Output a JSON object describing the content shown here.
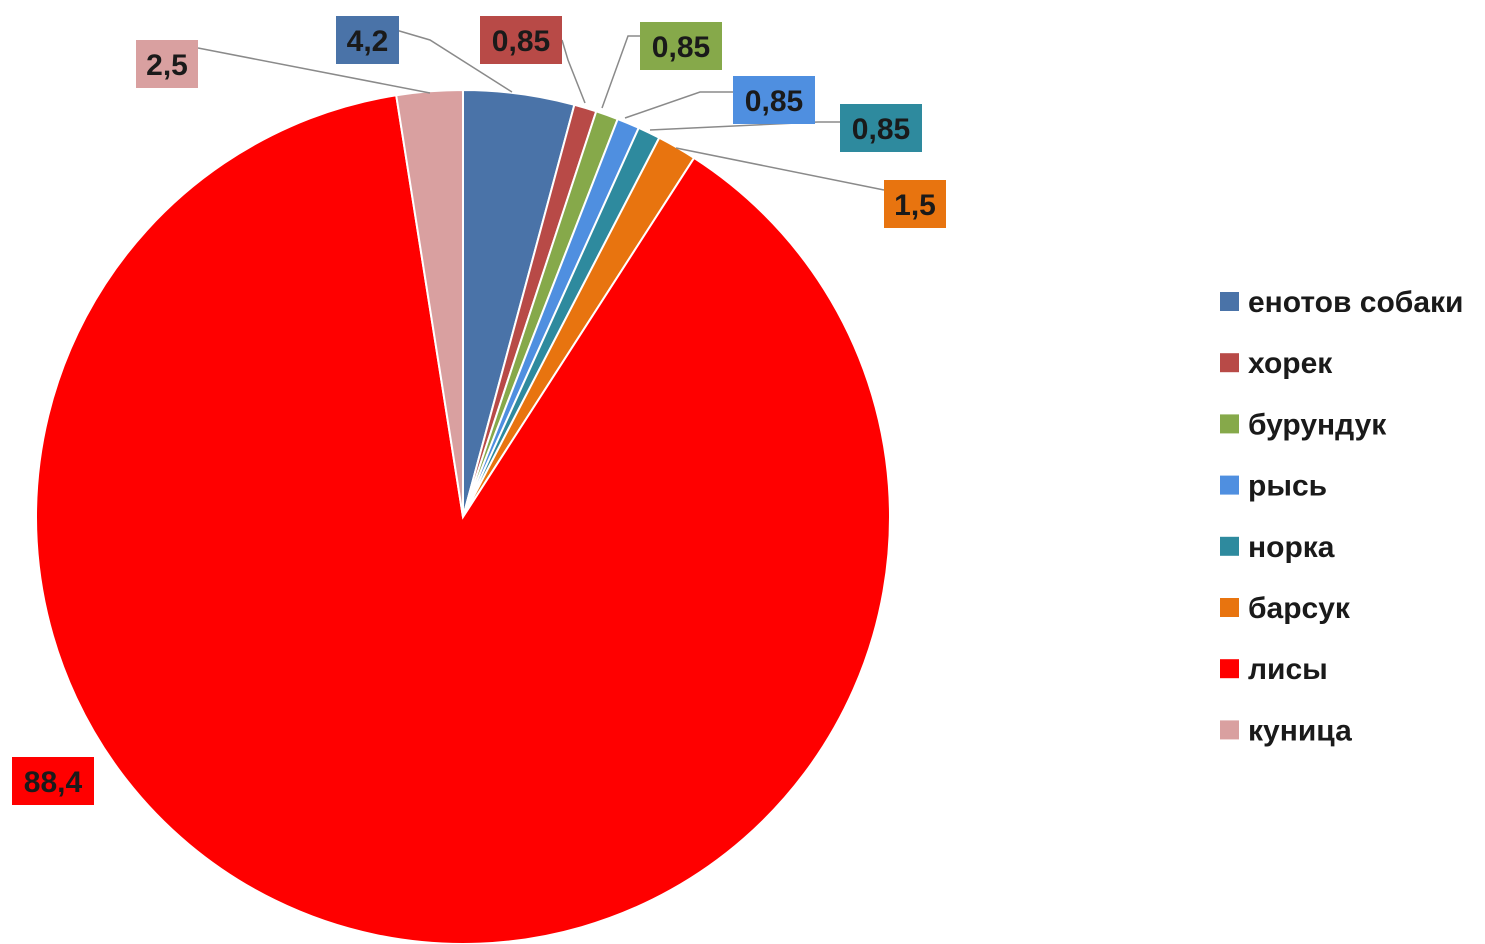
{
  "chart_data": {
    "type": "pie",
    "title": "",
    "categories": [
      "енотов собаки",
      "хорек",
      "бурундук",
      "рысь",
      "норка",
      "барсук",
      "лисы",
      "куница"
    ],
    "values": [
      4.2,
      0.85,
      0.85,
      0.85,
      0.85,
      1.5,
      88.4,
      2.5
    ],
    "value_labels": [
      "4,2",
      "0,85",
      "0,85",
      "0,85",
      "0,85",
      "1,5",
      "88,4",
      "2,5"
    ],
    "colors": [
      "#4A73A8",
      "#B84A47",
      "#86A94A",
      "#4F8FE0",
      "#2E8A9E",
      "#E8740F",
      "#FF0000",
      "#D9A0A0"
    ],
    "start": "12 o'clock",
    "direction": "clockwise",
    "legend_position": "right",
    "data_labels": "callouts with leader lines"
  }
}
